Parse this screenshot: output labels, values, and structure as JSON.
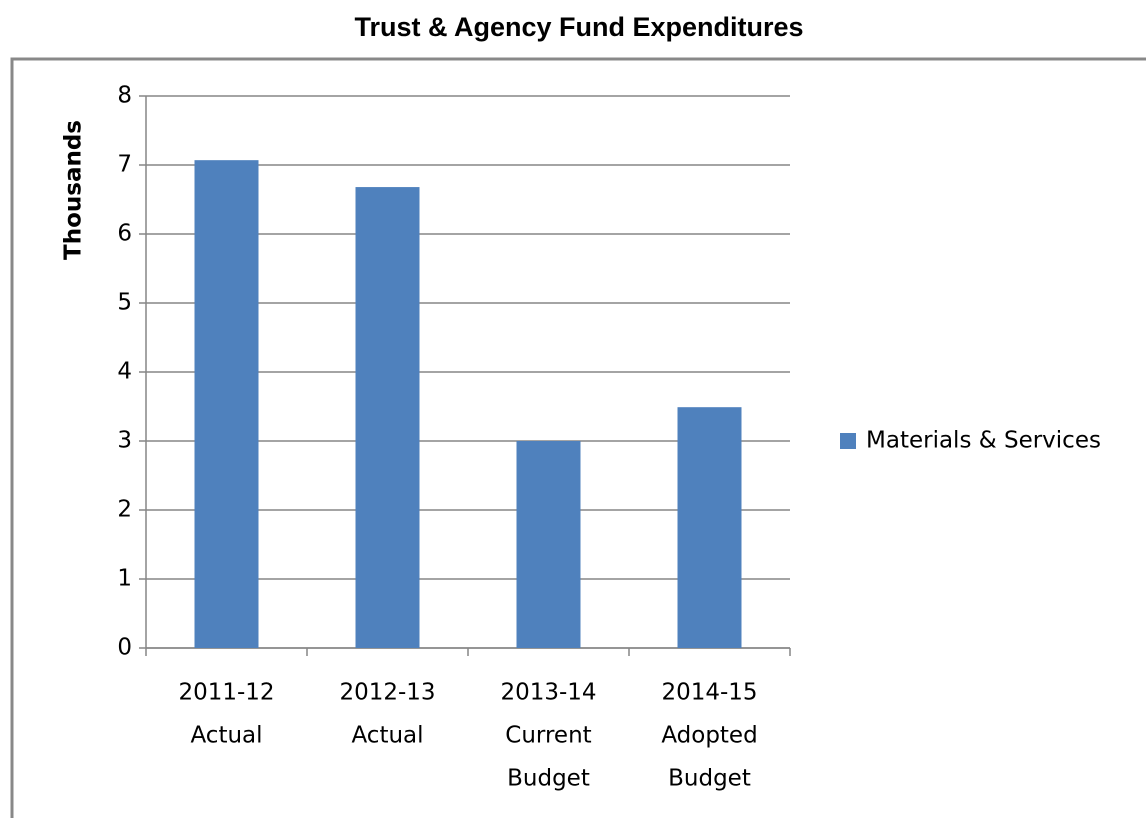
{
  "chart_data": {
    "type": "bar",
    "title": "Trust & Agency Fund Expenditures",
    "y_label": "Thousands",
    "categories": [
      [
        "2011-12",
        "Actual"
      ],
      [
        "2012-13",
        "Actual"
      ],
      [
        "2013-14",
        "Current",
        "Budget"
      ],
      [
        "2014-15",
        "Adopted",
        "Budget"
      ]
    ],
    "series": [
      {
        "name": "Materials & Services",
        "color": "#4f81bd",
        "values": [
          7.07,
          6.68,
          3.0,
          3.49
        ]
      }
    ],
    "ylim": [
      0,
      8
    ],
    "yticks": [
      0,
      1,
      2,
      3,
      4,
      5,
      6,
      7,
      8
    ],
    "grid": true,
    "legend": "right"
  }
}
